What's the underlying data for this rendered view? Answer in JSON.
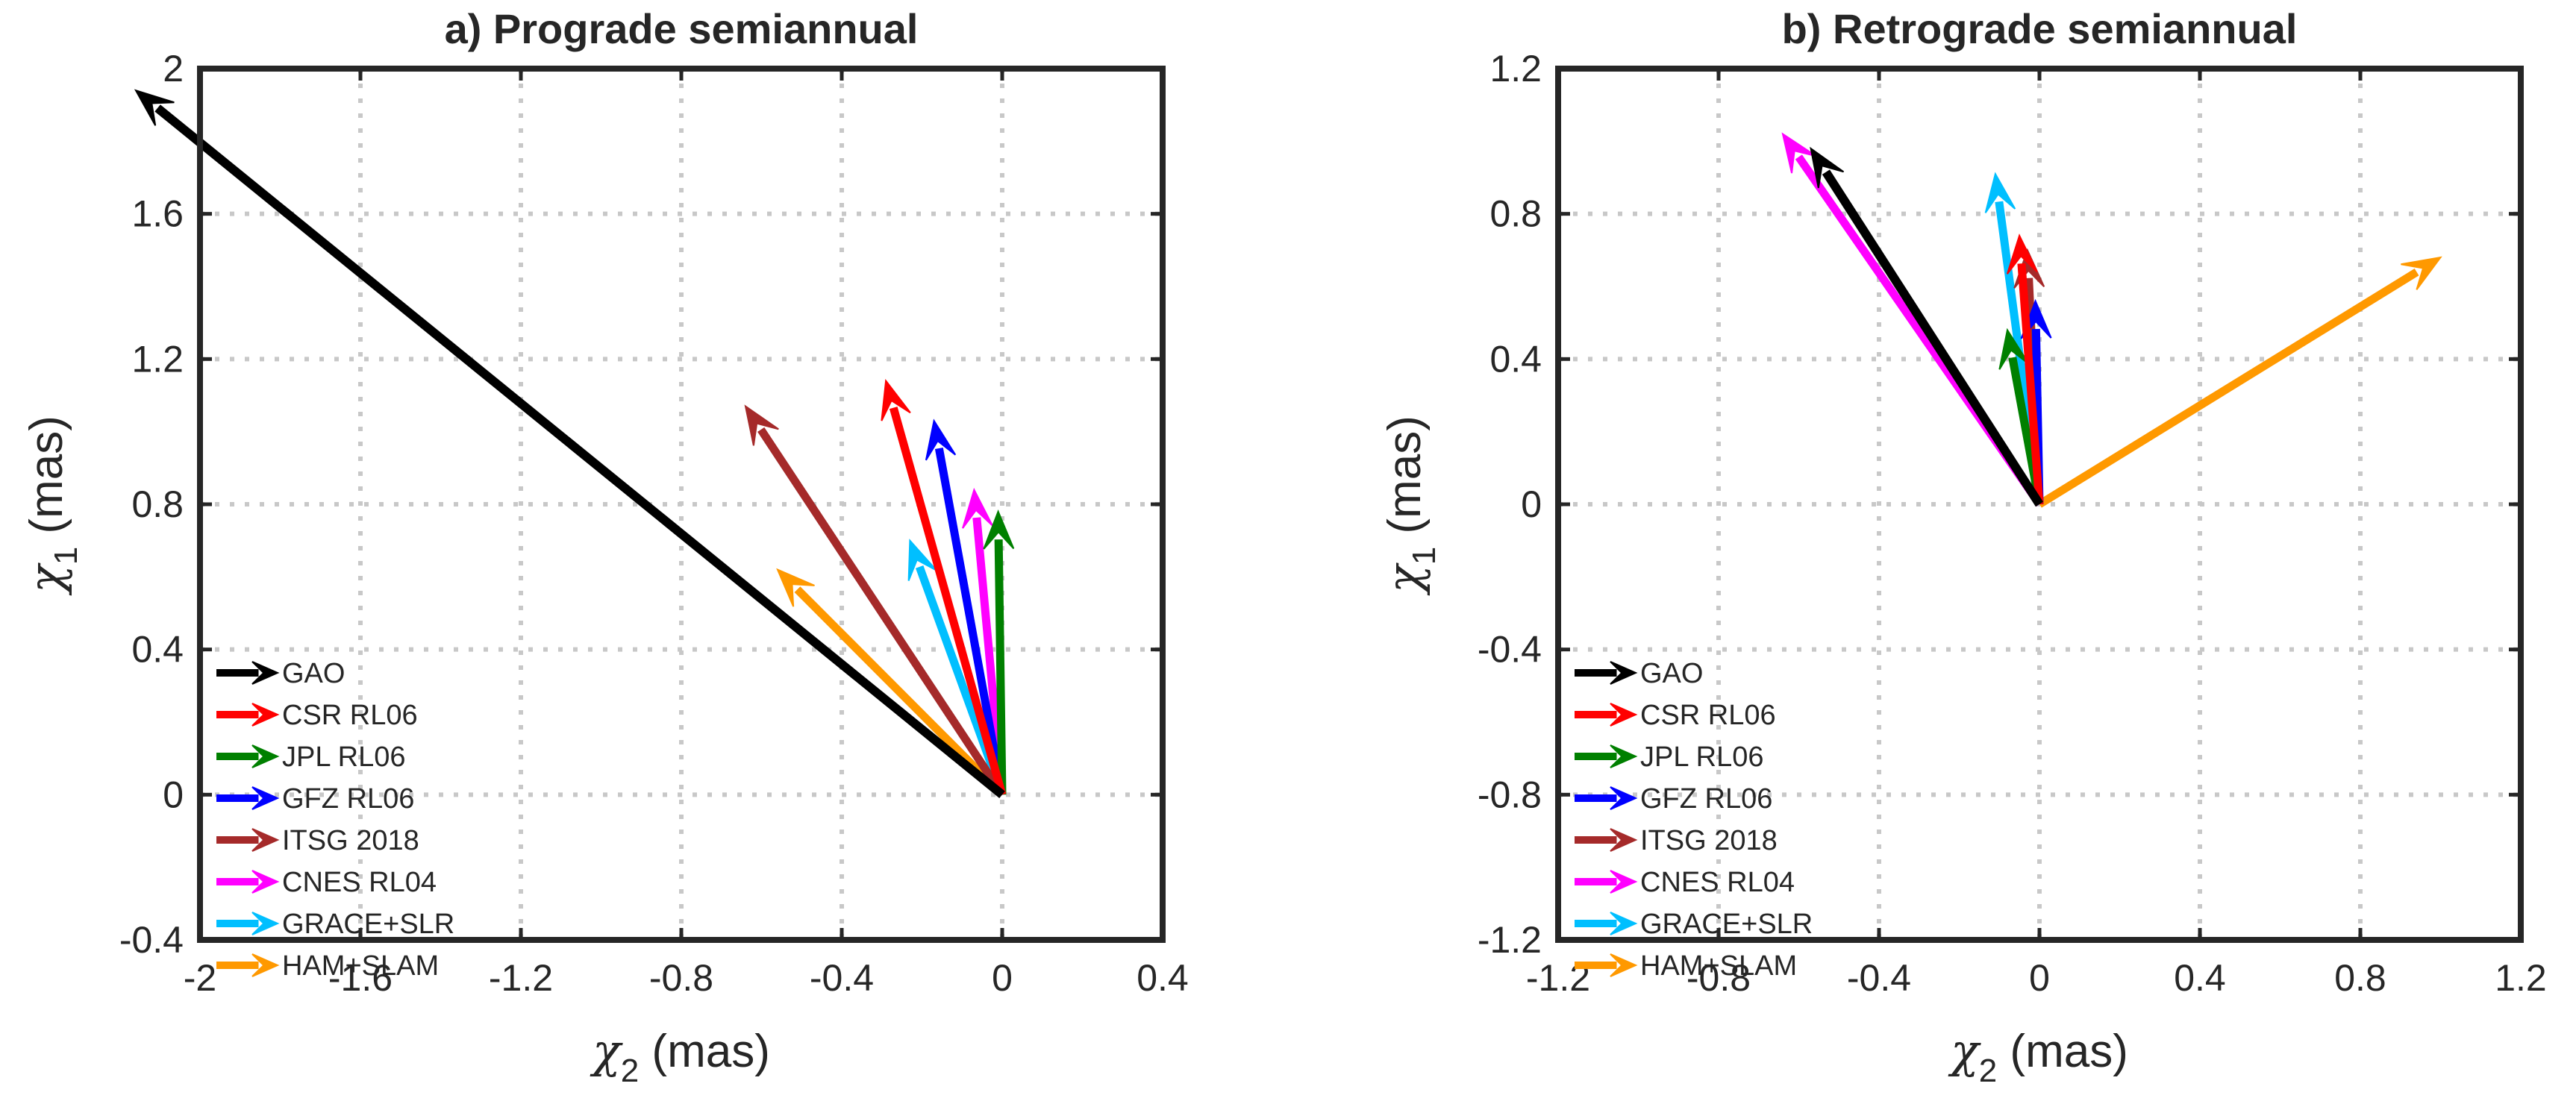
{
  "chart_data": [
    {
      "type": "vector",
      "title": "a) Prograde semiannual",
      "xlabel": {
        "symbol": "χ",
        "subscript": "2",
        "unit": " (mas)"
      },
      "ylabel": {
        "symbol": "χ",
        "subscript": "1",
        "unit": " (mas)"
      },
      "xlim": [
        -2,
        0.4
      ],
      "ylim": [
        -0.4,
        2
      ],
      "xticks": [
        -2,
        -1.6,
        -1.2,
        -0.8,
        -0.4,
        0,
        0.4
      ],
      "yticks": [
        -0.4,
        0,
        0.4,
        0.8,
        1.2,
        1.6,
        2
      ],
      "xtick_labels": [
        "-2",
        "-1.6",
        "-1.2",
        "-0.8",
        "-0.4",
        "0",
        "0.4"
      ],
      "ytick_labels": [
        "-0.4",
        "0",
        "0.4",
        "0.8",
        "1.2",
        "1.6",
        "2"
      ],
      "grid": true,
      "legend_position": "lower-left",
      "series": [
        {
          "name": "GAO",
          "color": "#000000",
          "x": -2.16,
          "y": 1.94
        },
        {
          "name": "CSR RL06",
          "color": "#ff0000",
          "x": -0.29,
          "y": 1.14
        },
        {
          "name": "JPL RL06",
          "color": "#008000",
          "x": -0.01,
          "y": 0.78
        },
        {
          "name": "GFZ RL06",
          "color": "#0000ff",
          "x": -0.17,
          "y": 1.03
        },
        {
          "name": "ITSG 2018",
          "color": "#a52a2a",
          "x": -0.64,
          "y": 1.07
        },
        {
          "name": "CNES RL04",
          "color": "#ff00ff",
          "x": -0.07,
          "y": 0.84
        },
        {
          "name": "GRACE+SLR",
          "color": "#00bfff",
          "x": -0.23,
          "y": 0.7
        },
        {
          "name": "HAM+SLAM",
          "color": "#ff9900",
          "x": -0.56,
          "y": 0.62
        }
      ]
    },
    {
      "type": "vector",
      "title": "b) Retrograde semiannual",
      "xlabel": {
        "symbol": "χ",
        "subscript": "2",
        "unit": " (mas)"
      },
      "ylabel": {
        "symbol": "χ",
        "subscript": "1",
        "unit": " (mas)"
      },
      "xlim": [
        -1.2,
        1.2
      ],
      "ylim": [
        -1.2,
        1.2
      ],
      "xticks": [
        -1.2,
        -0.8,
        -0.4,
        0,
        0.4,
        0.8,
        1.2
      ],
      "yticks": [
        -1.2,
        -0.8,
        -0.4,
        0,
        0.4,
        0.8,
        1.2
      ],
      "xtick_labels": [
        "-1.2",
        "-0.8",
        "-0.4",
        "0",
        "0.4",
        "0.8",
        "1.2"
      ],
      "ytick_labels": [
        "-1.2",
        "-0.8",
        "-0.4",
        "0",
        "0.4",
        "0.8",
        "1.2"
      ],
      "grid": true,
      "legend_position": "lower-left",
      "series": [
        {
          "name": "GAO",
          "color": "#000000",
          "x": -0.57,
          "y": 0.98
        },
        {
          "name": "CSR RL06",
          "color": "#ff0000",
          "x": -0.05,
          "y": 0.74
        },
        {
          "name": "JPL RL06",
          "color": "#008000",
          "x": -0.08,
          "y": 0.48
        },
        {
          "name": "GFZ RL06",
          "color": "#0000ff",
          "x": -0.01,
          "y": 0.56
        },
        {
          "name": "ITSG 2018",
          "color": "#a52a2a",
          "x": -0.03,
          "y": 0.7
        },
        {
          "name": "CNES RL04",
          "color": "#ff00ff",
          "x": -0.64,
          "y": 1.02
        },
        {
          "name": "GRACE+SLR",
          "color": "#00bfff",
          "x": -0.11,
          "y": 0.91
        },
        {
          "name": "HAM+SLAM",
          "color": "#ff9900",
          "x": 1.0,
          "y": 0.68
        }
      ]
    }
  ]
}
